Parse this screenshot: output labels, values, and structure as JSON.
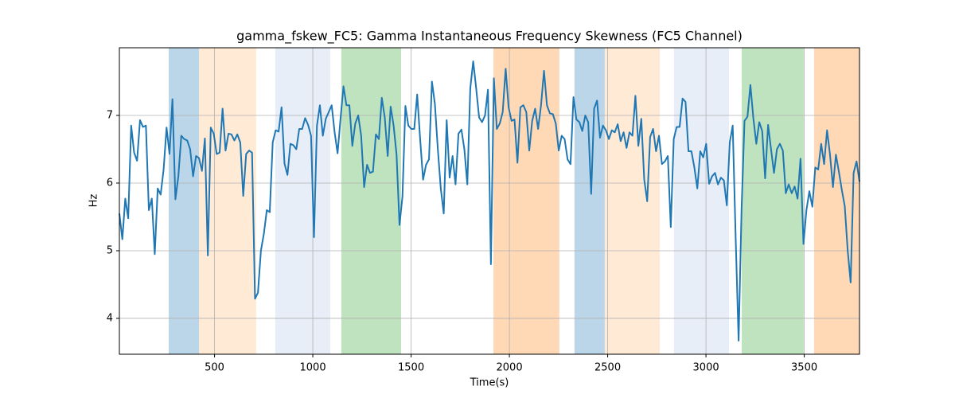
{
  "chart_data": {
    "type": "line",
    "title": "gamma_fskew_FC5: Gamma Instantaneous Frequency Skewness (FC5 Channel)",
    "xlabel": "Time(s)",
    "ylabel": "Hz",
    "xlim": [
      16,
      3781
    ],
    "ylim": [
      3.47,
      8.0
    ],
    "xticks": [
      500,
      1000,
      1500,
      2000,
      2500,
      3000,
      3500
    ],
    "yticks": [
      4,
      5,
      6,
      7
    ],
    "grid": true,
    "spans": [
      {
        "start": 267,
        "end": 421,
        "color": "#1f77b4",
        "opacity": 0.3
      },
      {
        "start": 421,
        "end": 712,
        "color": "#ffbb78",
        "opacity": 0.3
      },
      {
        "start": 809,
        "end": 1089,
        "color": "#aec7e8",
        "opacity": 0.3
      },
      {
        "start": 1145,
        "end": 1449,
        "color": "#2ca02c",
        "opacity": 0.3
      },
      {
        "start": 1919,
        "end": 2254,
        "color": "#ff7f0e",
        "opacity": 0.3
      },
      {
        "start": 2331,
        "end": 2485,
        "color": "#1f77b4",
        "opacity": 0.3
      },
      {
        "start": 2485,
        "end": 2765,
        "color": "#ffbb78",
        "opacity": 0.3
      },
      {
        "start": 2837,
        "end": 3117,
        "color": "#aec7e8",
        "opacity": 0.3
      },
      {
        "start": 3182,
        "end": 3497,
        "color": "#2ca02c",
        "opacity": 0.3
      },
      {
        "start": 3550,
        "end": 3781,
        "color": "#ff7f0e",
        "opacity": 0.3
      }
    ],
    "x": [
      16,
      31,
      46,
      61,
      76,
      91,
      106,
      121,
      136,
      151,
      166,
      181,
      196,
      211,
      226,
      241,
      256,
      271,
      286,
      301,
      316,
      331,
      346,
      361,
      376,
      391,
      406,
      421,
      436,
      451,
      466,
      481,
      496,
      511,
      526,
      541,
      556,
      571,
      586,
      601,
      616,
      631,
      646,
      661,
      676,
      691,
      706,
      721,
      736,
      751,
      766,
      781,
      796,
      811,
      826,
      841,
      856,
      871,
      886,
      901,
      916,
      931,
      946,
      961,
      976,
      991,
      1006,
      1021,
      1036,
      1051,
      1066,
      1081,
      1096,
      1111,
      1126,
      1141,
      1156,
      1171,
      1186,
      1201,
      1216,
      1231,
      1246,
      1261,
      1276,
      1291,
      1306,
      1321,
      1336,
      1351,
      1366,
      1381,
      1396,
      1411,
      1426,
      1441,
      1456,
      1471,
      1486,
      1501,
      1516,
      1531,
      1546,
      1561,
      1576,
      1591,
      1606,
      1621,
      1636,
      1651,
      1666,
      1681,
      1696,
      1711,
      1726,
      1741,
      1756,
      1771,
      1786,
      1801,
      1816,
      1831,
      1846,
      1861,
      1876,
      1891,
      1906,
      1921,
      1936,
      1951,
      1966,
      1981,
      1996,
      2011,
      2026,
      2041,
      2056,
      2071,
      2086,
      2101,
      2116,
      2131,
      2146,
      2161,
      2176,
      2191,
      2206,
      2221,
      2236,
      2251,
      2266,
      2281,
      2296,
      2311,
      2326,
      2341,
      2356,
      2371,
      2386,
      2401,
      2416,
      2431,
      2446,
      2461,
      2476,
      2491,
      2506,
      2521,
      2536,
      2551,
      2566,
      2581,
      2596,
      2611,
      2626,
      2641,
      2656,
      2671,
      2686,
      2701,
      2716,
      2731,
      2746,
      2761,
      2776,
      2791,
      2806,
      2821,
      2836,
      2851,
      2866,
      2881,
      2896,
      2911,
      2926,
      2941,
      2956,
      2971,
      2986,
      3001,
      3016,
      3031,
      3046,
      3061,
      3076,
      3091,
      3106,
      3121,
      3136,
      3151,
      3166,
      3181,
      3196,
      3211,
      3226,
      3241,
      3256,
      3271,
      3286,
      3301,
      3316,
      3331,
      3346,
      3361,
      3376,
      3391,
      3406,
      3421,
      3436,
      3451,
      3466,
      3481,
      3496,
      3511,
      3526,
      3541,
      3556,
      3571,
      3586,
      3601,
      3616,
      3631,
      3646,
      3661,
      3676,
      3691,
      3706,
      3721,
      3736,
      3751,
      3766,
      3781
    ],
    "series": [
      {
        "color": "#1f77b4",
        "values": [
          5.55,
          5.17,
          5.77,
          5.48,
          6.85,
          6.45,
          6.33,
          6.93,
          6.83,
          6.85,
          5.6,
          5.77,
          4.95,
          5.92,
          5.83,
          6.2,
          6.82,
          6.43,
          7.24,
          5.76,
          6.1,
          6.7,
          6.65,
          6.63,
          6.5,
          6.1,
          6.4,
          6.37,
          6.18,
          6.66,
          4.93,
          6.82,
          6.73,
          6.43,
          6.45,
          7.1,
          6.48,
          6.73,
          6.72,
          6.63,
          6.72,
          6.6,
          5.81,
          6.43,
          6.48,
          6.45,
          4.29,
          4.38,
          5.0,
          5.25,
          5.6,
          5.57,
          6.6,
          6.78,
          6.76,
          7.12,
          6.29,
          6.12,
          6.58,
          6.56,
          6.5,
          6.8,
          6.8,
          6.96,
          6.86,
          6.7,
          5.2,
          6.85,
          7.15,
          6.7,
          6.95,
          7.05,
          7.15,
          6.75,
          6.44,
          6.95,
          7.43,
          7.15,
          7.15,
          6.55,
          6.88,
          7.0,
          6.7,
          5.94,
          6.27,
          6.15,
          6.17,
          6.72,
          6.65,
          7.26,
          6.97,
          6.4,
          7.13,
          6.85,
          6.42,
          5.38,
          5.8,
          7.14,
          6.85,
          6.8,
          6.8,
          7.31,
          6.65,
          6.05,
          6.27,
          6.35,
          7.5,
          7.17,
          6.5,
          5.92,
          5.55,
          6.93,
          6.08,
          6.4,
          5.98,
          6.73,
          6.79,
          6.5,
          5.98,
          7.4,
          7.8,
          7.4,
          6.97,
          6.9,
          7.0,
          7.38,
          4.8,
          7.55,
          6.8,
          6.88,
          7.05,
          7.69,
          7.12,
          6.92,
          6.94,
          6.3,
          7.12,
          7.15,
          7.05,
          6.48,
          6.92,
          7.1,
          6.8,
          7.15,
          7.66,
          7.15,
          7.03,
          7.02,
          6.88,
          6.48,
          6.7,
          6.65,
          6.35,
          6.28,
          7.27,
          6.94,
          6.9,
          6.77,
          7.0,
          6.9,
          5.84,
          7.1,
          7.22,
          6.67,
          6.85,
          6.78,
          6.65,
          6.78,
          6.75,
          6.87,
          6.62,
          6.75,
          6.52,
          6.75,
          6.7,
          7.29,
          6.55,
          6.95,
          6.05,
          5.73,
          6.68,
          6.8,
          6.47,
          6.7,
          6.28,
          6.32,
          6.4,
          5.35,
          6.65,
          6.83,
          6.83,
          7.25,
          7.2,
          6.47,
          6.47,
          6.23,
          5.92,
          6.47,
          6.38,
          6.58,
          5.99,
          6.1,
          6.15,
          5.98,
          6.08,
          6.04,
          5.67,
          6.6,
          6.85,
          5.2,
          3.67,
          5.6,
          6.92,
          6.98,
          7.45,
          6.96,
          6.58,
          6.9,
          6.77,
          6.07,
          6.86,
          6.5,
          6.15,
          6.5,
          6.58,
          6.48,
          5.85,
          5.98,
          5.85,
          5.95,
          5.77,
          6.36,
          5.1,
          5.6,
          5.88,
          5.65,
          6.23,
          6.2,
          6.58,
          6.28,
          6.78,
          6.42,
          5.94,
          6.42,
          6.17,
          5.9,
          5.66,
          5.0,
          4.53,
          6.15,
          6.32,
          6.02
        ]
      }
    ]
  }
}
